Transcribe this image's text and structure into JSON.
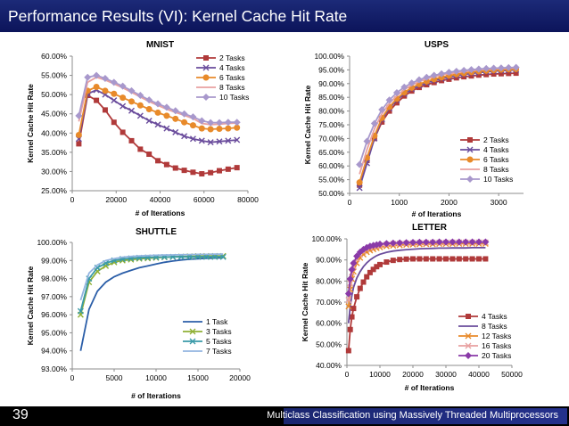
{
  "header": {
    "title": "Performance Results (VI): Kernel Cache Hit Rate"
  },
  "footer": {
    "slide_number": "39",
    "caption": "Multiclass Classification using Massively Threaded Multiprocessors"
  },
  "colors": {
    "header_bg": "#14206a",
    "footer_bg": "#000000"
  },
  "chart_data": [
    {
      "id": "mnist",
      "type": "line",
      "title": "MNIST",
      "xlabel": "# of Iterations",
      "ylabel": "Kernel Cache Hit Rate",
      "xlim": [
        0,
        80000
      ],
      "ylim": [
        25,
        60
      ],
      "xticks": [
        0,
        20000,
        40000,
        60000,
        80000
      ],
      "xtick_labels": [
        "0",
        "20000",
        "40000",
        "60000",
        "80000"
      ],
      "yticks": [
        25,
        30,
        35,
        40,
        45,
        50,
        55,
        60
      ],
      "ytick_labels": [
        "25.00%",
        "30.00%",
        "35.00%",
        "40.00%",
        "45.00%",
        "50.00%",
        "55.00%",
        "60.00%"
      ],
      "legend_position": "top-right",
      "x": [
        3000,
        7000,
        11000,
        15000,
        19000,
        23000,
        27000,
        31000,
        35000,
        39000,
        43000,
        47000,
        51000,
        55000,
        59000,
        63000,
        67000,
        71000,
        75000
      ],
      "series": [
        {
          "name": "2 Tasks",
          "color": "#b03a3a",
          "marker": "square",
          "values": [
            37.2,
            49.8,
            48.5,
            46.0,
            42.8,
            40.2,
            38.0,
            35.8,
            34.5,
            32.8,
            31.8,
            30.9,
            30.3,
            29.8,
            29.4,
            29.7,
            30.2,
            30.6,
            31.0
          ]
        },
        {
          "name": "4 Tasks",
          "color": "#6a4c9c",
          "marker": "x",
          "values": [
            38.5,
            50.2,
            51.2,
            50.0,
            48.5,
            47.0,
            45.8,
            44.5,
            43.2,
            42.2,
            41.2,
            40.2,
            39.2,
            38.5,
            38.0,
            37.6,
            37.8,
            38.0,
            38.2
          ]
        },
        {
          "name": "6 Tasks",
          "color": "#e88a2a",
          "marker": "circle",
          "values": [
            39.5,
            51.0,
            52.0,
            51.0,
            50.2,
            49.2,
            48.2,
            47.2,
            46.2,
            45.3,
            44.5,
            43.7,
            42.8,
            42.0,
            41.2,
            41.0,
            41.1,
            41.2,
            41.4
          ]
        },
        {
          "name": "8 Tasks",
          "color": "#e8a0a0",
          "marker": "none",
          "values": [
            43.0,
            53.2,
            54.5,
            53.8,
            52.8,
            51.8,
            50.6,
            49.4,
            48.2,
            47.2,
            46.2,
            45.4,
            44.6,
            43.8,
            42.5,
            42.2,
            42.3,
            42.5,
            42.6
          ]
        },
        {
          "name": "10 Tasks",
          "color": "#a898cc",
          "marker": "diamond",
          "values": [
            44.5,
            54.5,
            55.0,
            54.2,
            53.2,
            52.2,
            51.0,
            49.8,
            48.6,
            47.6,
            46.7,
            45.8,
            45.0,
            44.2,
            43.2,
            42.7,
            42.7,
            42.8,
            42.8
          ]
        }
      ]
    },
    {
      "id": "usps",
      "type": "line",
      "title": "USPS",
      "xlabel": "# of Iterations",
      "ylabel": "Kernel Cache Hit Rate",
      "xlim": [
        0,
        3500
      ],
      "ylim": [
        50,
        100
      ],
      "xticks": [
        0,
        1000,
        2000,
        3000
      ],
      "xtick_labels": [
        "0",
        "1000",
        "2000",
        "3000"
      ],
      "yticks": [
        50,
        55,
        60,
        65,
        70,
        75,
        80,
        85,
        90,
        95,
        100
      ],
      "ytick_labels": [
        "50.00%",
        "55.00%",
        "60.00%",
        "65.00%",
        "70.00%",
        "75.00%",
        "80.00%",
        "85.00%",
        "90.00%",
        "95.00%",
        "100.00%"
      ],
      "legend_position": "bottom-right",
      "x": [
        200,
        350,
        500,
        650,
        800,
        950,
        1100,
        1250,
        1400,
        1550,
        1700,
        1850,
        2000,
        2150,
        2300,
        2450,
        2600,
        2750,
        2900,
        3050,
        3200,
        3350
      ],
      "series": [
        {
          "name": "2 Tasks",
          "color": "#b03a3a",
          "marker": "square",
          "values": [
            53.0,
            62.0,
            70.0,
            76.0,
            80.0,
            83.0,
            85.5,
            87.3,
            88.6,
            89.6,
            90.4,
            91.1,
            91.6,
            92.1,
            92.5,
            92.8,
            93.1,
            93.3,
            93.5,
            93.6,
            93.7,
            93.8
          ]
        },
        {
          "name": "4 Tasks",
          "color": "#6a4c9c",
          "marker": "x",
          "values": [
            52.0,
            61.0,
            70.0,
            77.0,
            81.0,
            84.0,
            86.3,
            88.0,
            89.3,
            90.3,
            91.1,
            91.8,
            92.4,
            92.9,
            93.3,
            93.7,
            94.0,
            94.3,
            94.5,
            94.7,
            94.8,
            95.0
          ]
        },
        {
          "name": "6 Tasks",
          "color": "#e88a2a",
          "marker": "circle",
          "values": [
            54.0,
            63.0,
            71.0,
            77.5,
            81.5,
            84.5,
            86.8,
            88.5,
            89.8,
            90.8,
            91.6,
            92.3,
            92.9,
            93.4,
            93.8,
            94.2,
            94.5,
            94.7,
            94.9,
            95.1,
            95.2,
            95.3
          ]
        },
        {
          "name": "8 Tasks",
          "color": "#e8a0a0",
          "marker": "none",
          "values": [
            57.0,
            66.0,
            73.5,
            79.0,
            82.8,
            85.6,
            87.8,
            89.4,
            90.7,
            91.7,
            92.5,
            93.1,
            93.6,
            94.0,
            94.4,
            94.7,
            95.0,
            95.2,
            95.4,
            95.5,
            95.6,
            95.7
          ]
        },
        {
          "name": "10 Tasks",
          "color": "#a898cc",
          "marker": "diamond",
          "values": [
            60.5,
            69.0,
            75.5,
            80.5,
            84.0,
            86.7,
            88.7,
            90.2,
            91.4,
            92.3,
            93.0,
            93.6,
            94.1,
            94.5,
            94.8,
            95.1,
            95.3,
            95.5,
            95.6,
            95.7,
            95.8,
            95.9
          ]
        }
      ]
    },
    {
      "id": "shuttle",
      "type": "line",
      "title": "SHUTTLE",
      "xlabel": "# of Iterations",
      "ylabel": "Kernel Cache Hit Rate",
      "xlim": [
        0,
        20000
      ],
      "ylim": [
        93,
        100
      ],
      "xticks": [
        0,
        5000,
        10000,
        15000,
        20000
      ],
      "xtick_labels": [
        "0",
        "5000",
        "10000",
        "15000",
        "20000"
      ],
      "yticks": [
        93,
        94,
        95,
        96,
        97,
        98,
        99,
        100
      ],
      "ytick_labels": [
        "93.00%",
        "94.00%",
        "95.00%",
        "96.00%",
        "97.00%",
        "98.00%",
        "99.00%",
        "100.00%"
      ],
      "legend_position": "bottom-right",
      "x": [
        1000,
        2000,
        3000,
        4000,
        5000,
        6000,
        7000,
        8000,
        9000,
        10000,
        11000,
        12000,
        13000,
        14000,
        15000,
        16000,
        17000,
        18000
      ],
      "series": [
        {
          "name": "1 Task",
          "color": "#2b5ea8",
          "marker": "none",
          "values": [
            94.0,
            96.3,
            97.3,
            97.8,
            98.1,
            98.3,
            98.45,
            98.6,
            98.7,
            98.8,
            98.9,
            98.97,
            99.03,
            99.07,
            99.1,
            99.12,
            99.13,
            99.15
          ]
        },
        {
          "name": "3 Tasks",
          "color": "#8fb034",
          "marker": "x",
          "values": [
            96.0,
            97.8,
            98.4,
            98.7,
            98.9,
            99.0,
            99.05,
            99.1,
            99.12,
            99.15,
            99.18,
            99.2,
            99.22,
            99.23,
            99.24,
            99.25,
            99.25,
            99.25
          ]
        },
        {
          "name": "5 Tasks",
          "color": "#3a9aa8",
          "marker": "x",
          "values": [
            96.2,
            98.0,
            98.6,
            98.85,
            99.0,
            99.08,
            99.12,
            99.15,
            99.17,
            99.18,
            99.19,
            99.2,
            99.2,
            99.2,
            99.2,
            99.2,
            99.2,
            99.2
          ]
        },
        {
          "name": "7 Tasks",
          "color": "#92b4e0",
          "marker": "none",
          "values": [
            96.8,
            98.3,
            98.75,
            99.0,
            99.1,
            99.18,
            99.22,
            99.25,
            99.27,
            99.29,
            99.3,
            99.31,
            99.32,
            99.33,
            99.34,
            99.34,
            99.35,
            99.35
          ]
        }
      ]
    },
    {
      "id": "letter",
      "type": "line",
      "title": "LETTER",
      "xlabel": "# of Iterations",
      "ylabel": "Kernel Cache Hit Rate",
      "xlim": [
        0,
        50000
      ],
      "ylim": [
        40,
        100
      ],
      "xticks": [
        0,
        10000,
        20000,
        30000,
        40000,
        50000
      ],
      "xtick_labels": [
        "0",
        "10000",
        "20000",
        "30000",
        "40000",
        "50000"
      ],
      "yticks": [
        40,
        50,
        60,
        70,
        80,
        90,
        100
      ],
      "ytick_labels": [
        "40.00%",
        "50.00%",
        "60.00%",
        "70.00%",
        "80.00%",
        "90.00%",
        "100.00%"
      ],
      "legend_position": "bottom-right",
      "x": [
        500,
        1000,
        1500,
        2000,
        3000,
        4000,
        5000,
        6000,
        7000,
        8000,
        9000,
        10000,
        12000,
        14000,
        16000,
        18000,
        20000,
        22000,
        24000,
        26000,
        28000,
        30000,
        32000,
        34000,
        36000,
        38000,
        40000,
        42000
      ],
      "series": [
        {
          "name": "4 Tasks",
          "color": "#b03a3a",
          "marker": "square",
          "values": [
            47.0,
            57.0,
            63.0,
            67.0,
            72.5,
            76.5,
            79.5,
            82.0,
            84.0,
            85.5,
            86.8,
            87.8,
            89.0,
            89.8,
            90.2,
            90.4,
            90.5,
            90.5,
            90.5,
            90.5,
            90.5,
            90.5,
            90.5,
            90.5,
            90.5,
            90.5,
            90.5,
            90.5
          ]
        },
        {
          "name": "8 Tasks",
          "color": "#6a4c9c",
          "marker": "none",
          "values": [
            60.0,
            68.0,
            73.0,
            77.0,
            81.5,
            84.5,
            86.8,
            88.6,
            90.0,
            91.1,
            92.0,
            92.7,
            93.6,
            94.2,
            94.6,
            94.9,
            95.1,
            95.3,
            95.4,
            95.5,
            95.6,
            95.6,
            95.7,
            95.7,
            95.7,
            95.8,
            95.8,
            95.8
          ]
        },
        {
          "name": "12 Tasks",
          "color": "#e88a2a",
          "marker": "x",
          "values": [
            68.0,
            76.0,
            81.0,
            84.5,
            88.5,
            91.0,
            92.6,
            93.7,
            94.5,
            95.1,
            95.6,
            96.0,
            96.5,
            96.8,
            97.0,
            97.2,
            97.3,
            97.4,
            97.5,
            97.5,
            97.6,
            97.6,
            97.6,
            97.7,
            97.7,
            97.7,
            97.7,
            97.7
          ]
        },
        {
          "name": "16 Tasks",
          "color": "#e8a0a0",
          "marker": "x",
          "values": [
            71.0,
            79.0,
            84.0,
            87.0,
            90.5,
            92.6,
            94.0,
            95.0,
            95.7,
            96.2,
            96.6,
            96.9,
            97.3,
            97.6,
            97.8,
            97.9,
            98.0,
            98.1,
            98.1,
            98.2,
            98.2,
            98.2,
            98.3,
            98.3,
            98.3,
            98.3,
            98.3,
            98.3
          ]
        },
        {
          "name": "20 Tasks",
          "color": "#8a3aa8",
          "marker": "diamond",
          "values": [
            74.0,
            81.0,
            85.5,
            88.5,
            91.8,
            93.7,
            95.0,
            95.9,
            96.5,
            96.9,
            97.2,
            97.5,
            97.8,
            98.0,
            98.1,
            98.2,
            98.3,
            98.4,
            98.4,
            98.4,
            98.5,
            98.5,
            98.5,
            98.5,
            98.5,
            98.5,
            98.5,
            98.5
          ]
        }
      ]
    }
  ]
}
